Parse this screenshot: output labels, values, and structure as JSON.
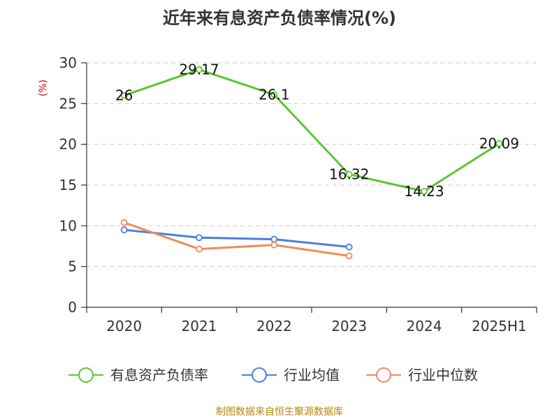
{
  "chart_data": {
    "type": "line",
    "title": "近年来有息资产负债率情况(%)",
    "ylabel": "(%)",
    "categories": [
      "2020",
      "2021",
      "2022",
      "2023",
      "2024",
      "2025H1"
    ],
    "ylim": [
      0,
      30
    ],
    "yticks": [
      0,
      5,
      10,
      15,
      20,
      25,
      30
    ],
    "grid": true,
    "legend_position": "bottom",
    "series": [
      {
        "name": "有息资产负债率",
        "color": "#5cc531",
        "values": [
          26,
          29.17,
          26.1,
          16.32,
          14.23,
          20.09
        ],
        "labels": [
          "26",
          "29.17",
          "26.1",
          "16.32",
          "14.23",
          "20.09"
        ]
      },
      {
        "name": "行业均值",
        "color": "#4a7fdc",
        "values": [
          9.5,
          8.55,
          8.35,
          7.4,
          null,
          null
        ],
        "labels": []
      },
      {
        "name": "行业中位数",
        "color": "#f08c5a",
        "values": [
          10.4,
          7.15,
          7.65,
          6.3,
          null,
          null
        ],
        "labels": []
      }
    ]
  },
  "footer": {
    "source": "制图数据来自恒生聚源数据库"
  }
}
